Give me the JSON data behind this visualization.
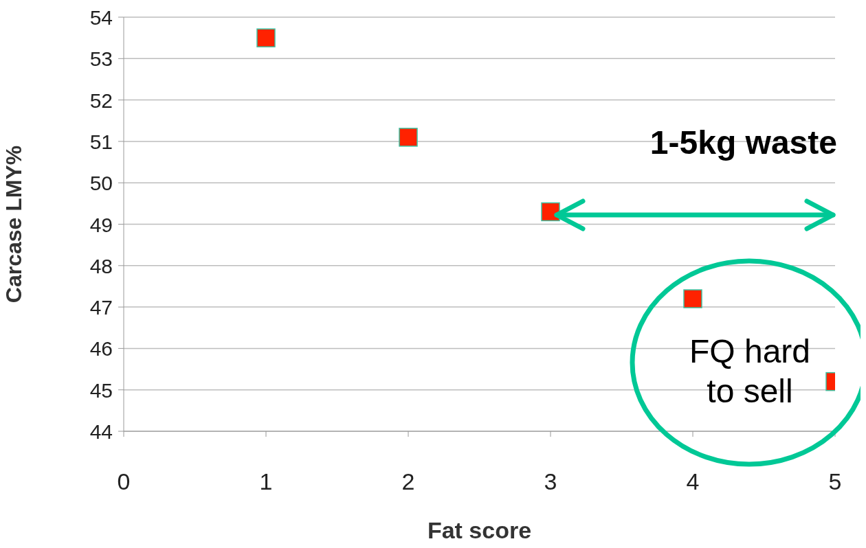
{
  "chart_data": {
    "type": "scatter",
    "xlabel": "Fat score",
    "ylabel": "Carcase LMY%",
    "x": [
      1,
      2,
      3,
      4,
      5
    ],
    "values": [
      53.5,
      51.1,
      49.3,
      47.2,
      45.2
    ],
    "color": "#ff2200",
    "marker": "square",
    "xlim": [
      0,
      5
    ],
    "xticks": [
      0,
      1,
      2,
      3,
      4,
      5
    ],
    "ylim": [
      44,
      54
    ],
    "yticks": [
      44,
      45,
      46,
      47,
      48,
      49,
      50,
      51,
      52,
      53,
      54
    ],
    "grid": "y",
    "annotations": [
      "1-5kg waste",
      "FQ hard to sell"
    ]
  }
}
